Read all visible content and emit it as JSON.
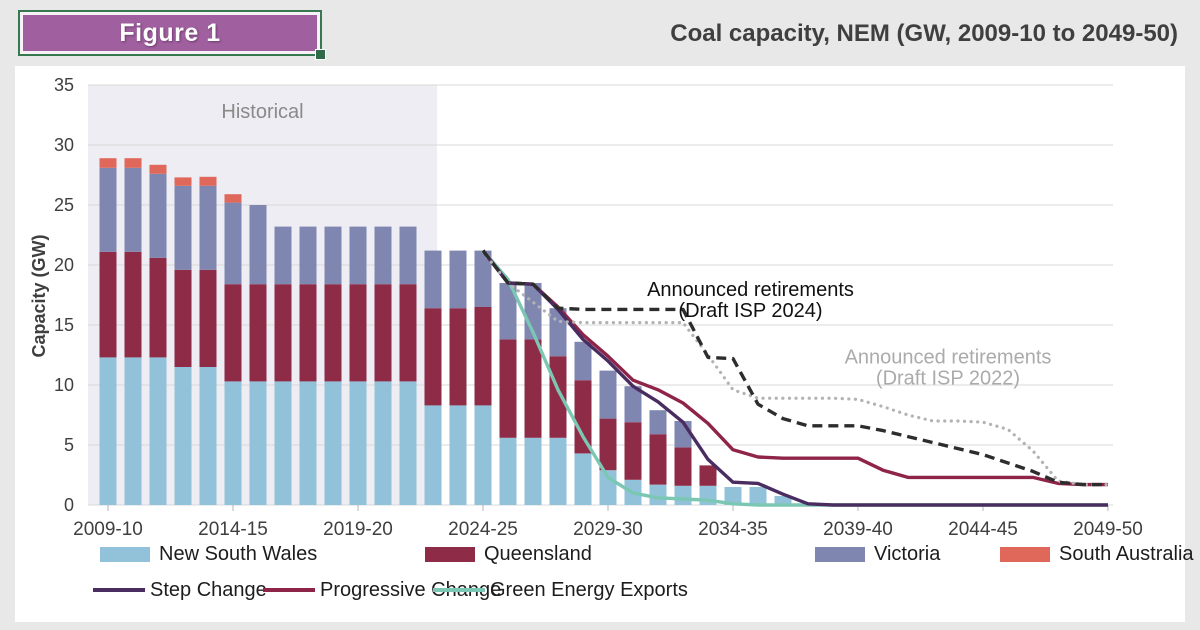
{
  "figure_label": "Figure 1",
  "title": "Coal capacity, NEM (GW, 2009-10 to 2049-50)",
  "colors": {
    "new_south_wales": "#92c2da",
    "queensland": "#8e2c48",
    "victoria": "#7f86b0",
    "south_australia": "#e0685a",
    "step_change": "#4a2d60",
    "progressive_change": "#8f2449",
    "green_energy_exports": "#7cc7b4",
    "isp_2024": "#2d2d2d",
    "isp_2022": "#b3b3b3",
    "historical_band": "#ededf3",
    "gridline": "#d9d9d9",
    "axis_text": "#3f3f3f",
    "annotation_dark": "#111111",
    "annotation_gray": "#ababab",
    "page_bg": "#e8e8e8",
    "panel_bg": "#ffffff",
    "figure_fill": "#a0609f",
    "figure_border": "#37794f",
    "historical_text": "#8a8a8a"
  },
  "chart_data": {
    "type": "combo-stacked-bar-line",
    "title": "Coal capacity, NEM (GW, 2009-10 to 2049-50)",
    "ylabel": "Capacity (GW)",
    "ylim": [
      0,
      35
    ],
    "yticks": [
      0,
      5,
      10,
      15,
      20,
      25,
      30,
      35
    ],
    "xticks": [
      "2009-10",
      "2014-15",
      "2019-20",
      "2024-25",
      "2029-30",
      "2034-35",
      "2039-40",
      "2044-45",
      "2049-50"
    ],
    "grid": "horizontal",
    "historical_band": {
      "label": "Historical",
      "from": "2009-10",
      "to": "2022-23"
    },
    "categories": [
      "2009-10",
      "2010-11",
      "2011-12",
      "2012-13",
      "2013-14",
      "2014-15",
      "2015-16",
      "2016-17",
      "2017-18",
      "2018-19",
      "2019-20",
      "2020-21",
      "2021-22",
      "2022-23",
      "2023-24",
      "2024-25",
      "2025-26",
      "2026-27",
      "2027-28",
      "2028-29",
      "2029-30",
      "2030-31",
      "2031-32",
      "2032-33",
      "2033-34",
      "2034-35",
      "2035-36",
      "2036-37",
      "2037-38",
      "2038-39",
      "2039-40",
      "2040-41",
      "2041-42",
      "2042-43",
      "2043-44",
      "2044-45",
      "2045-46",
      "2046-47",
      "2047-48",
      "2048-49",
      "2049-50"
    ],
    "bar_series": [
      {
        "name": "New South Wales",
        "key": "new_south_wales",
        "values": [
          12.3,
          12.3,
          12.3,
          11.5,
          11.5,
          10.3,
          10.3,
          10.3,
          10.3,
          10.3,
          10.3,
          10.3,
          10.3,
          8.3,
          8.3,
          8.3,
          5.6,
          5.6,
          5.6,
          4.3,
          2.9,
          2.1,
          1.7,
          1.6,
          1.6,
          1.5,
          1.5,
          0.75,
          0,
          0,
          0,
          0,
          0,
          0,
          0,
          0,
          0,
          0,
          0,
          0,
          0
        ]
      },
      {
        "name": "Queensland",
        "key": "queensland",
        "values": [
          8.8,
          8.8,
          8.3,
          8.1,
          8.1,
          8.1,
          8.1,
          8.1,
          8.1,
          8.1,
          8.1,
          8.1,
          8.1,
          8.1,
          8.1,
          8.2,
          8.2,
          8.2,
          6.8,
          6.1,
          4.3,
          4.8,
          4.2,
          3.2,
          1.7,
          0,
          0,
          0,
          0,
          0,
          0,
          0,
          0,
          0,
          0,
          0,
          0,
          0,
          0,
          0,
          0
        ]
      },
      {
        "name": "Victoria",
        "key": "victoria",
        "values": [
          7.0,
          7.0,
          7.0,
          7.0,
          7.0,
          6.8,
          6.6,
          4.8,
          4.8,
          4.8,
          4.8,
          4.8,
          4.8,
          4.8,
          4.8,
          4.7,
          4.7,
          4.7,
          4.0,
          3.2,
          4.0,
          3.0,
          2.0,
          2.2,
          0,
          0,
          0,
          0,
          0,
          0,
          0,
          0,
          0,
          0,
          0,
          0,
          0,
          0,
          0,
          0,
          0
        ]
      },
      {
        "name": "South Australia",
        "key": "south_australia",
        "values": [
          0.8,
          0.8,
          0.75,
          0.7,
          0.75,
          0.7,
          0,
          0,
          0,
          0,
          0,
          0,
          0,
          0,
          0,
          0,
          0,
          0,
          0,
          0,
          0,
          0,
          0,
          0,
          0,
          0,
          0,
          0,
          0,
          0,
          0,
          0,
          0,
          0,
          0,
          0,
          0,
          0,
          0,
          0,
          0
        ]
      }
    ],
    "line_series": [
      {
        "name": "Green Energy Exports",
        "key": "green_energy_exports",
        "style": "solid",
        "values": [
          null,
          null,
          null,
          null,
          null,
          null,
          null,
          null,
          null,
          null,
          null,
          null,
          null,
          null,
          null,
          21.2,
          18.8,
          14.4,
          9.6,
          5.7,
          2.3,
          1.0,
          0.6,
          0.5,
          0.4,
          0.1,
          0,
          0,
          0,
          0,
          0,
          0,
          0,
          0,
          0,
          0,
          0,
          0,
          0,
          0,
          0
        ]
      },
      {
        "name": "Progressive Change",
        "key": "progressive_change",
        "style": "solid",
        "values": [
          null,
          null,
          null,
          null,
          null,
          null,
          null,
          null,
          null,
          null,
          null,
          null,
          null,
          null,
          null,
          21.2,
          18.5,
          18.4,
          16.5,
          14.2,
          12.4,
          10.4,
          9.6,
          8.5,
          6.8,
          4.6,
          4.0,
          3.9,
          3.9,
          3.9,
          3.9,
          2.9,
          2.3,
          2.3,
          2.3,
          2.3,
          2.3,
          2.3,
          1.8,
          1.7,
          1.7
        ]
      },
      {
        "name": "Step Change",
        "key": "step_change",
        "style": "solid",
        "values": [
          null,
          null,
          null,
          null,
          null,
          null,
          null,
          null,
          null,
          null,
          null,
          null,
          null,
          null,
          null,
          21.2,
          18.5,
          18.4,
          16.3,
          13.8,
          12.0,
          9.9,
          8.6,
          6.9,
          3.8,
          1.9,
          1.8,
          0.9,
          0.1,
          0,
          0,
          0,
          0,
          0,
          0,
          0,
          0,
          0,
          0,
          0,
          0
        ]
      },
      {
        "name": "Announced retirements (Draft ISP 2022)",
        "key": "isp_2022",
        "style": "dotted",
        "values": [
          null,
          null,
          null,
          null,
          null,
          null,
          null,
          null,
          null,
          null,
          null,
          null,
          null,
          null,
          null,
          21.1,
          18.5,
          16.9,
          15.3,
          15.2,
          15.2,
          15.2,
          15.2,
          15.2,
          12.5,
          9.6,
          8.9,
          8.9,
          8.9,
          8.9,
          8.8,
          8.2,
          7.5,
          7.0,
          7.0,
          6.9,
          6.3,
          4.5,
          2.0,
          1.7,
          1.7
        ]
      },
      {
        "name": "Announced retirements (Draft ISP 2024)",
        "key": "isp_2024",
        "style": "dashed",
        "values": [
          null,
          null,
          null,
          null,
          null,
          null,
          null,
          null,
          null,
          null,
          null,
          null,
          null,
          null,
          null,
          21.2,
          18.5,
          18.4,
          16.4,
          16.3,
          16.3,
          16.3,
          16.3,
          16.3,
          12.3,
          12.2,
          8.4,
          7.2,
          6.6,
          6.6,
          6.6,
          6.2,
          5.7,
          5.2,
          4.7,
          4.2,
          3.5,
          2.8,
          1.9,
          1.7,
          1.7
        ]
      }
    ],
    "annotations": [
      {
        "lines": [
          "Announced retirements",
          "(Draft ISP 2024)"
        ],
        "color_key": "annotation_dark",
        "x_index": 25.7,
        "y_gw": 17.4
      },
      {
        "lines": [
          "Announced retirements",
          "(Draft ISP 2022)"
        ],
        "color_key": "annotation_gray",
        "x_index": 33.6,
        "y_gw": 11.8
      }
    ]
  },
  "legend": {
    "row1": [
      {
        "label": "New South Wales",
        "key": "new_south_wales"
      },
      {
        "label": "Queensland",
        "key": "queensland"
      },
      {
        "label": "Victoria",
        "key": "victoria"
      },
      {
        "label": "South Australia",
        "key": "south_australia"
      }
    ],
    "row2": [
      {
        "label": "Step Change",
        "key": "step_change"
      },
      {
        "label": "Progressive Change",
        "key": "progressive_change"
      },
      {
        "label": "Green Energy Exports",
        "key": "green_energy_exports"
      }
    ]
  }
}
